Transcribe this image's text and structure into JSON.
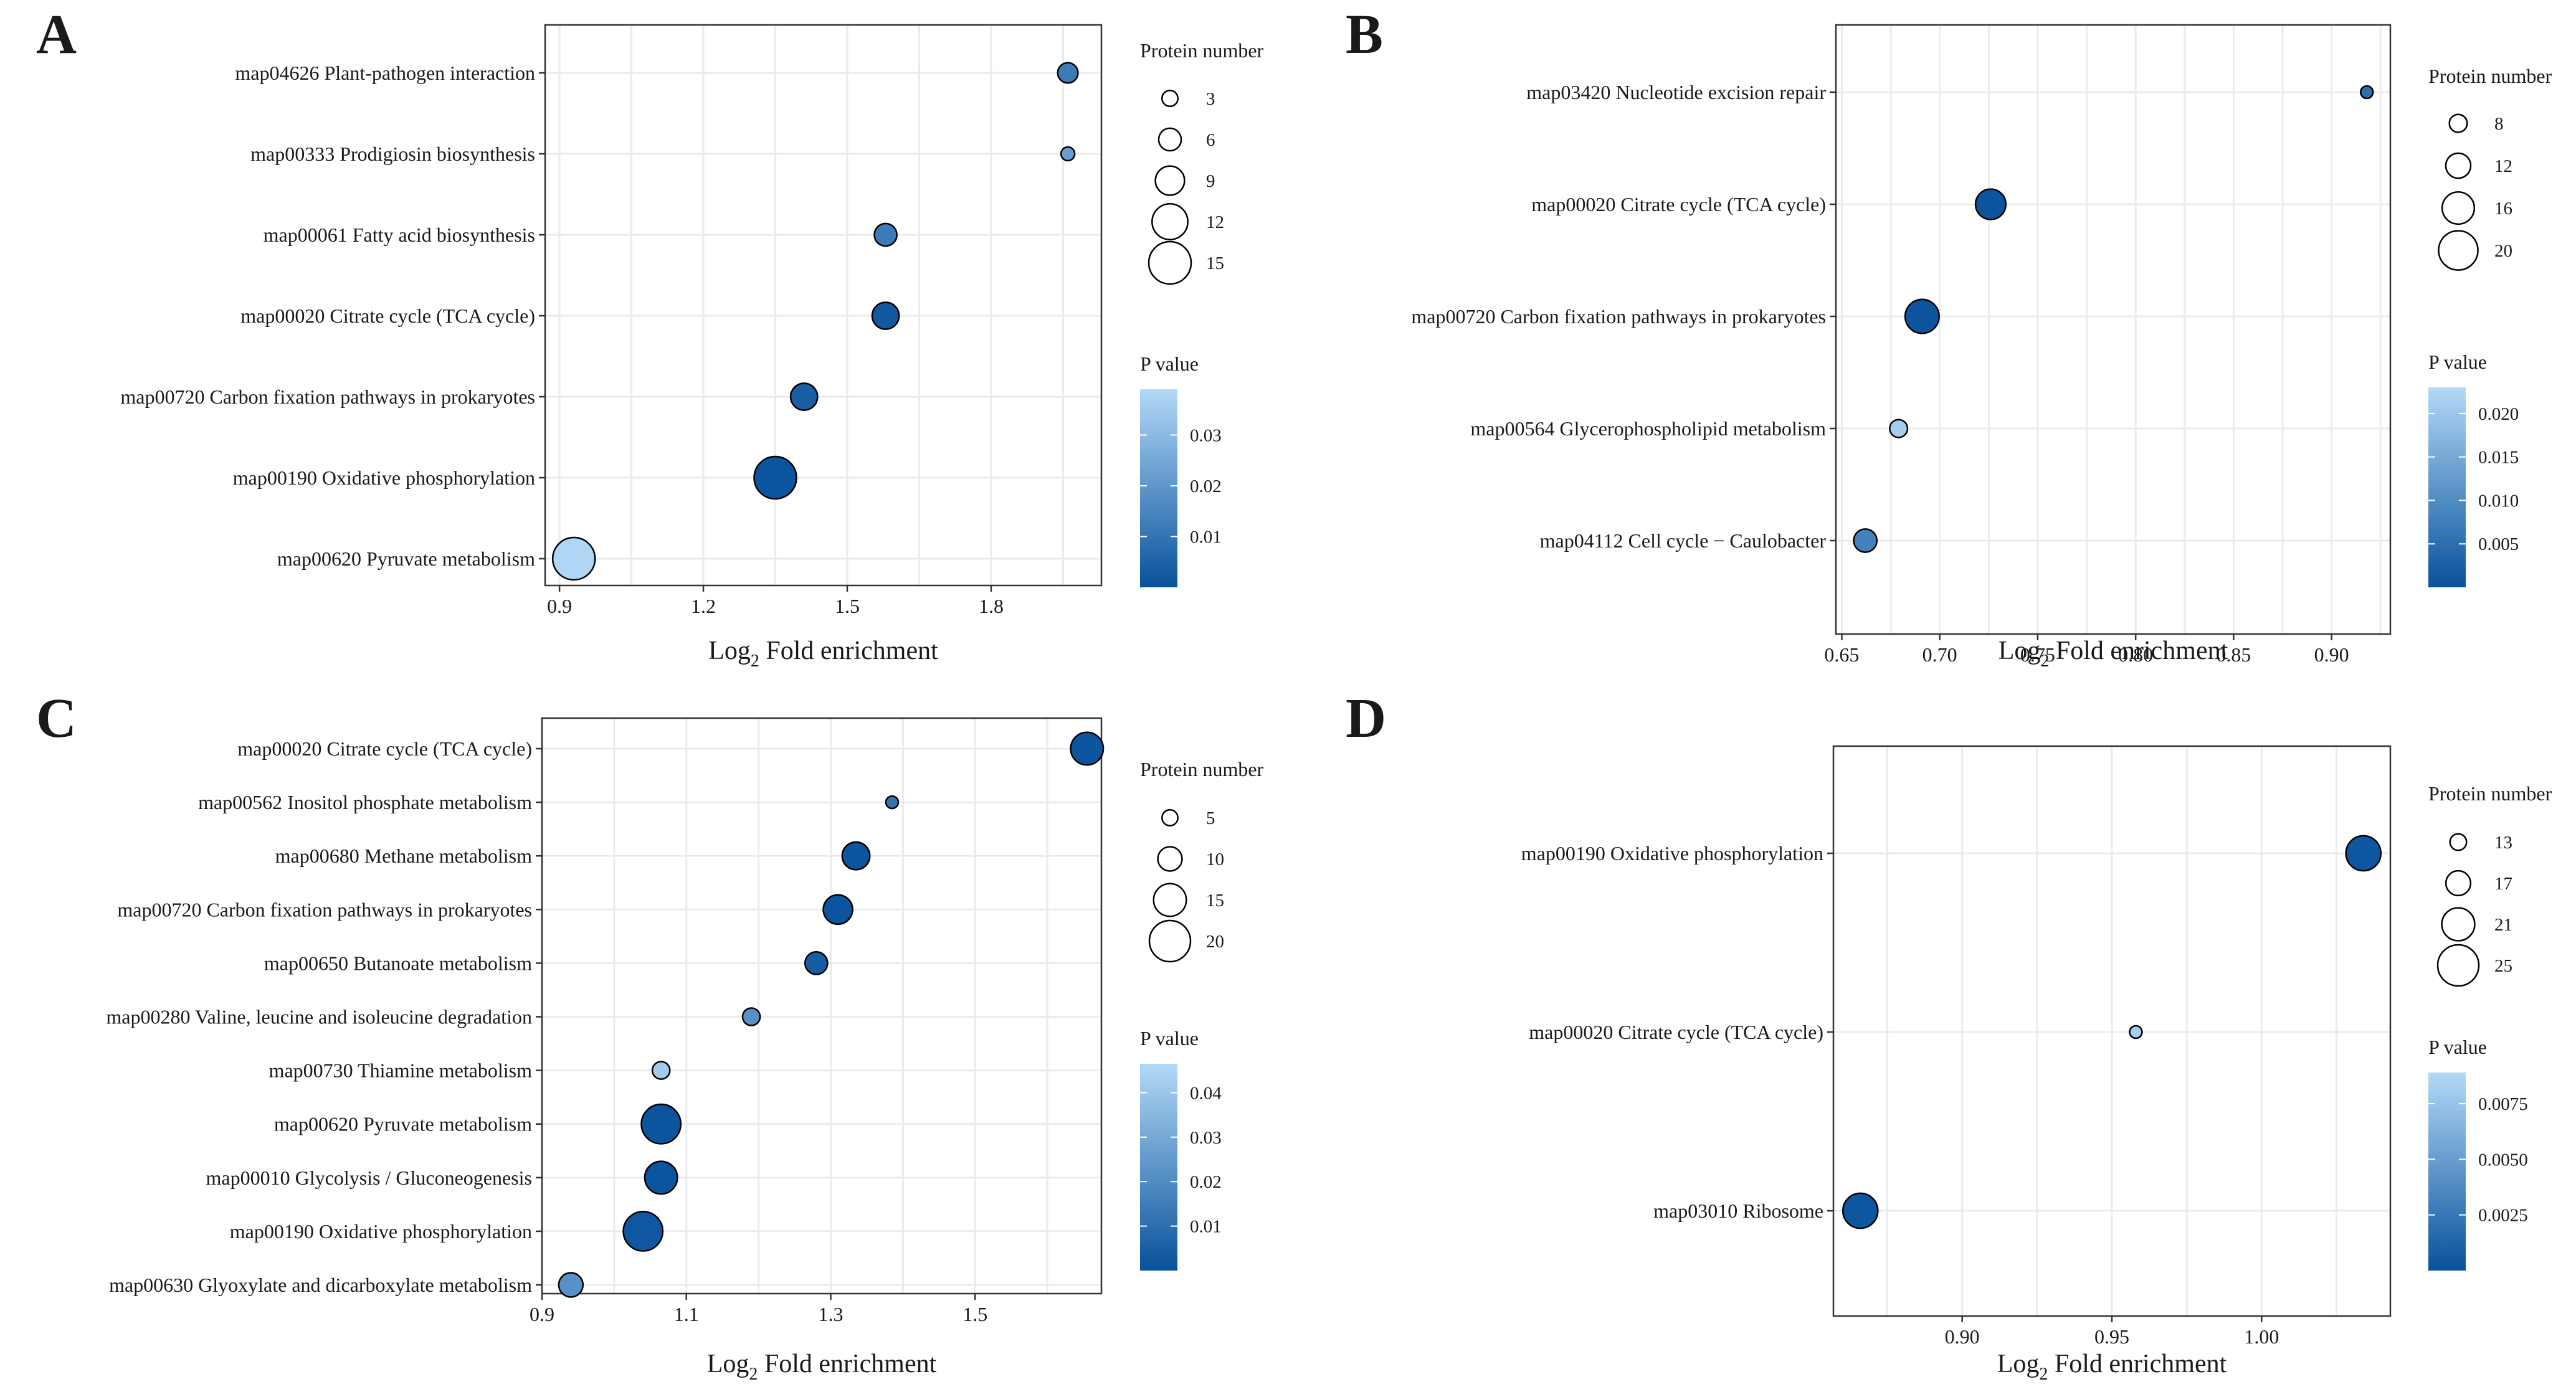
{
  "colors": {
    "low_p": "#08519c",
    "high_p": "#b3d9f7",
    "grid": "#ebebeb",
    "frame": "#333333",
    "bubble_stroke": "#000000"
  },
  "chart_data": [
    {
      "type": "scatter",
      "panel": "A",
      "xlabel_prefix": "Log",
      "xlabel_sub": "2",
      "xlabel_suffix": " Fold enrichment",
      "xlim": [
        0.87,
        2.03
      ],
      "xticks": [
        0.9,
        1.2,
        1.5,
        1.8
      ],
      "xtick_labels": [
        "0.9",
        "1.2",
        "1.5",
        "1.8"
      ],
      "categories": [
        "map04626 Plant-pathogen interaction",
        "map00333 Prodigiosin biosynthesis",
        "map00061 Fatty acid biosynthesis",
        "map00020 Citrate cycle (TCA cycle)",
        "map00720 Carbon fixation pathways in prokaryotes",
        "map00190 Oxidative phosphorylation",
        "map00620 Pyruvate metabolism"
      ],
      "x": [
        1.96,
        1.96,
        1.58,
        1.58,
        1.41,
        1.35,
        0.93
      ],
      "size": [
        5,
        2,
        6,
        8,
        8,
        15,
        15
      ],
      "pvalue": [
        0.012,
        0.022,
        0.012,
        0.002,
        0.004,
        0.001,
        0.038
      ],
      "size_legend": {
        "title": "Protein number",
        "values": [
          3,
          6,
          9,
          12,
          15
        ],
        "labels": [
          "3",
          "6",
          "9",
          "12",
          "15"
        ]
      },
      "color_legend": {
        "title": "P value",
        "min": 0,
        "max": 0.039,
        "ticks": [
          0.01,
          0.02,
          0.03
        ],
        "tick_labels": [
          "0.01",
          "0.02",
          "0.03"
        ]
      }
    },
    {
      "type": "scatter",
      "panel": "B",
      "xlabel_prefix": "Log",
      "xlabel_sub": "2",
      "xlabel_suffix": " Fold enrichment",
      "xlim": [
        0.647,
        0.93
      ],
      "xticks": [
        0.65,
        0.7,
        0.75,
        0.8,
        0.85,
        0.9
      ],
      "xtick_labels": [
        "0.65",
        "0.70",
        "0.75",
        "0.80",
        "0.85",
        "0.90"
      ],
      "categories": [
        "map03420 Nucleotide excision repair",
        "map00020 Citrate cycle (TCA cycle)",
        "map00720 Carbon fixation pathways in prokaryotes",
        "map00564 Glycerophospholipid metabolism",
        "map04112 Cell cycle − Caulobacter"
      ],
      "x": [
        0.918,
        0.726,
        0.691,
        0.679,
        0.662
      ],
      "size": [
        5,
        15,
        17,
        8,
        11
      ],
      "pvalue": [
        0.005,
        0.0005,
        0.0005,
        0.021,
        0.008
      ],
      "size_legend": {
        "title": "Protein number",
        "values": [
          8,
          12,
          16,
          20
        ],
        "labels": [
          "8",
          "12",
          "16",
          "20"
        ]
      },
      "color_legend": {
        "title": "P value",
        "min": 0,
        "max": 0.023,
        "ticks": [
          0.005,
          0.01,
          0.015,
          0.02
        ],
        "tick_labels": [
          "0.005",
          "0.010",
          "0.015",
          "0.020"
        ]
      }
    },
    {
      "type": "scatter",
      "panel": "C",
      "xlabel_prefix": "Log",
      "xlabel_sub": "2",
      "xlabel_suffix": " Fold enrichment",
      "xlim": [
        0.9,
        1.675
      ],
      "xticks": [
        0.9,
        1.1,
        1.3,
        1.5
      ],
      "xtick_labels": [
        "0.9",
        "1.1",
        "1.3",
        "1.5"
      ],
      "categories": [
        "map00020 Citrate cycle (TCA cycle)",
        "map00562 Inositol phosphate metabolism",
        "map00680 Methane metabolism",
        "map00720 Carbon fixation pathways in prokaryotes",
        "map00650 Butanoate metabolism",
        "map00280 Valine, leucine and isoleucine degradation",
        "map00730 Thiamine metabolism",
        "map00620 Pyruvate metabolism",
        "map00010 Glycolysis / Gluconeogenesis",
        "map00190 Oxidative phosphorylation",
        "map00630 Glyoxylate and dicarboxylate metabolism"
      ],
      "x": [
        1.655,
        1.385,
        1.335,
        1.31,
        1.28,
        1.19,
        1.065,
        1.065,
        1.065,
        1.04,
        0.94
      ],
      "size": [
        15,
        3,
        12,
        13,
        9,
        6,
        6,
        19,
        15,
        19,
        10
      ],
      "pvalue": [
        0.001,
        0.012,
        0.001,
        0.001,
        0.004,
        0.022,
        0.042,
        0.001,
        0.001,
        0.002,
        0.022
      ],
      "size_legend": {
        "title": "Protein number",
        "values": [
          5,
          10,
          15,
          20
        ],
        "labels": [
          "5",
          "10",
          "15",
          "20"
        ]
      },
      "color_legend": {
        "title": "P value",
        "min": 0,
        "max": 0.0465,
        "ticks": [
          0.01,
          0.02,
          0.03,
          0.04
        ],
        "tick_labels": [
          "0.01",
          "0.02",
          "0.03",
          "0.04"
        ]
      }
    },
    {
      "type": "scatter",
      "panel": "D",
      "xlabel_prefix": "Log",
      "xlabel_sub": "2",
      "xlabel_suffix": " Fold enrichment",
      "xlim": [
        0.857,
        1.043
      ],
      "xticks": [
        0.9,
        0.95,
        1.0
      ],
      "xtick_labels": [
        "0.90",
        "0.95",
        "1.00"
      ],
      "categories": [
        "map00190 Oxidative phosphorylation",
        "map00020 Citrate cycle (TCA cycle)",
        "map03010 Ribosome"
      ],
      "x": [
        1.034,
        0.958,
        0.866
      ],
      "size": [
        22,
        11,
        22
      ],
      "pvalue": [
        0.0003,
        0.0082,
        0.0003
      ],
      "size_legend": {
        "title": "Protein number",
        "values": [
          13,
          17,
          21,
          25
        ],
        "labels": [
          "13",
          "17",
          "21",
          "25"
        ]
      },
      "color_legend": {
        "title": "P value",
        "min": 0,
        "max": 0.0089,
        "ticks": [
          0.0025,
          0.005,
          0.0075
        ],
        "tick_labels": [
          "0.0025",
          "0.0050",
          "0.0075"
        ]
      }
    }
  ]
}
